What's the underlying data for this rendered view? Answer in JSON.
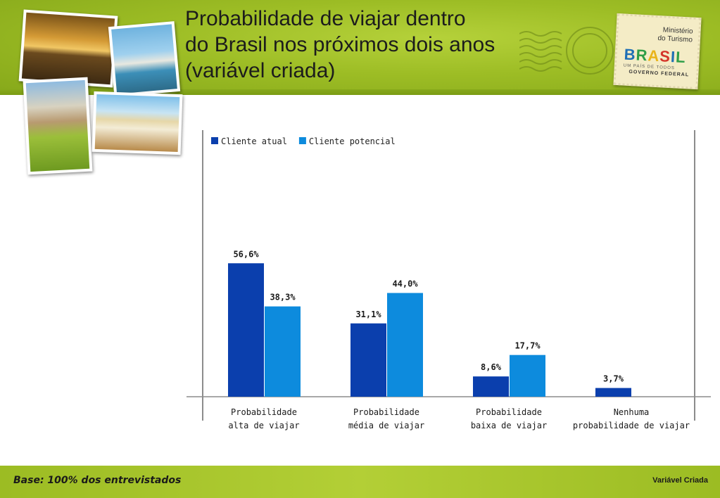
{
  "title_lines": [
    "Probabilidade de viajar dentro",
    "do Brasil nos próximos dois anos",
    "(variável criada)"
  ],
  "stamp": {
    "ministry": "Ministério\ndo Turismo",
    "brand": [
      "B",
      "R",
      "A",
      "S",
      "I",
      "L"
    ],
    "tagline": "UM PAÍS DE TODOS",
    "government": "GOVERNO FEDERAL"
  },
  "footer": {
    "base": "Base: 100% dos entrevistados",
    "variable": "Variável Criada"
  },
  "colors": {
    "series_1": "#0b3fad",
    "series_2": "#0d8bdd",
    "header_green": "#9dbd25"
  },
  "chart_data": {
    "type": "bar",
    "title": "",
    "xlabel": "",
    "ylabel": "",
    "ylim": [
      0,
      100
    ],
    "legend_position": "top-left",
    "grid": false,
    "categories": [
      [
        "Probabilidade",
        "alta de viajar"
      ],
      [
        "Probabilidade",
        "média de viajar"
      ],
      [
        "Probabilidade",
        "baixa de viajar"
      ],
      [
        "Nenhuma",
        "probabilidade de viajar"
      ]
    ],
    "series": [
      {
        "name": "Cliente atual",
        "values": [
          56.6,
          31.1,
          8.6,
          3.7
        ],
        "labels": [
          "56,6%",
          "31,1%",
          "8,6%",
          "3,7%"
        ]
      },
      {
        "name": "Cliente potencial",
        "values": [
          38.3,
          44.0,
          17.7,
          null
        ],
        "labels": [
          "38,3%",
          "44,0%",
          "17,7%",
          ""
        ]
      }
    ]
  }
}
